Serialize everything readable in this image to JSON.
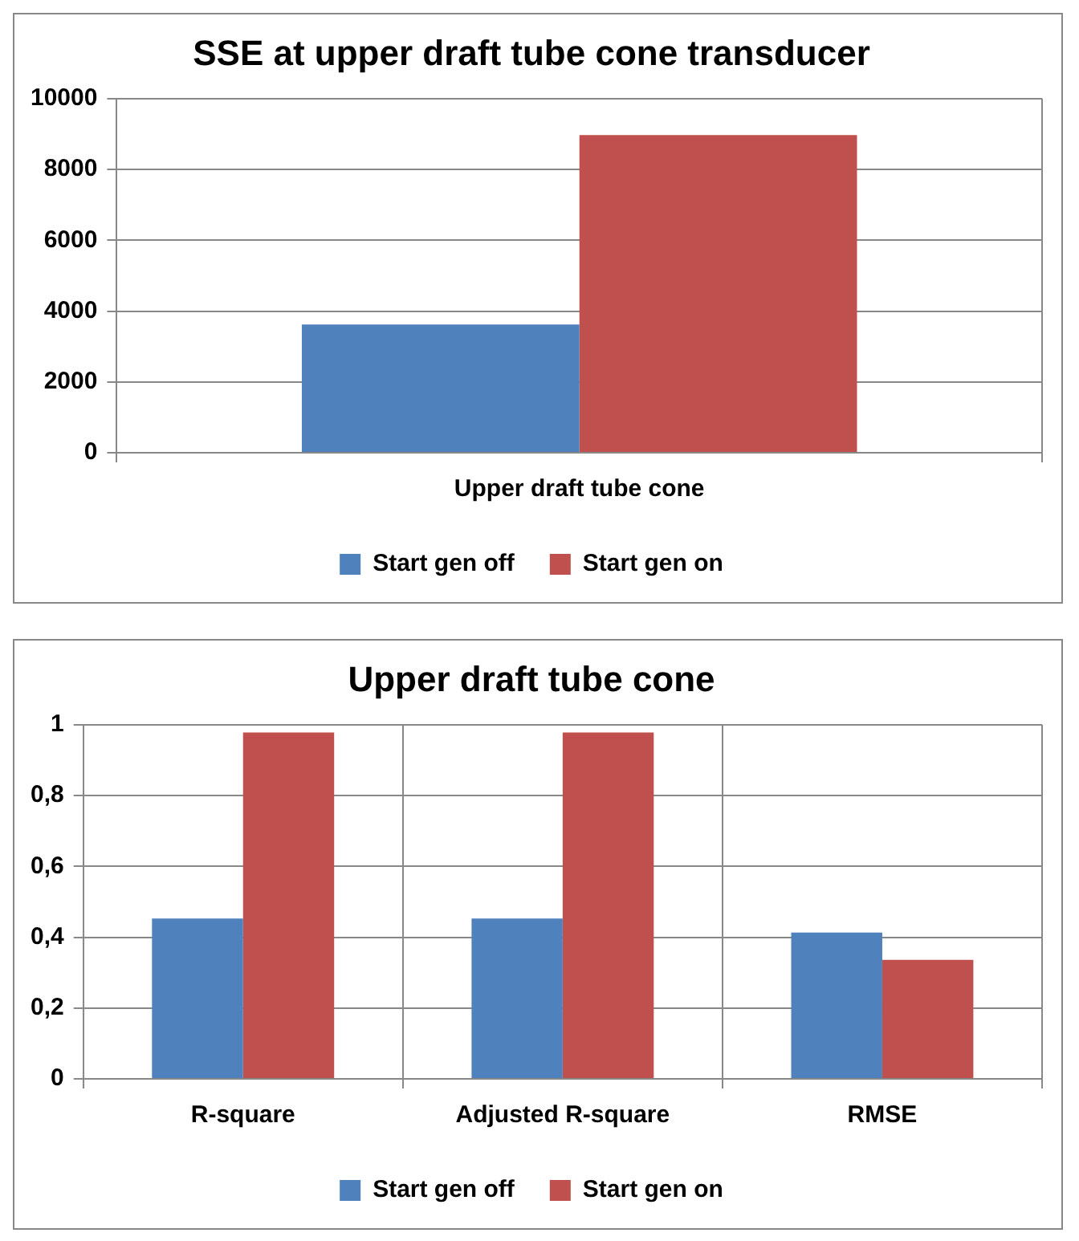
{
  "chart_data": [
    {
      "type": "bar",
      "title": "SSE at upper draft tube cone transducer",
      "categories": [
        "Upper draft tube cone"
      ],
      "series": [
        {
          "name": "Start gen off",
          "color": "#4f81bd",
          "values": [
            3620
          ]
        },
        {
          "name": "Start gen on",
          "color": "#c0504d",
          "values": [
            8970
          ]
        }
      ],
      "ylim": [
        0,
        10000
      ],
      "yticks": [
        0,
        2000,
        4000,
        6000,
        8000,
        10000
      ],
      "grid": true,
      "legend": "bottom"
    },
    {
      "type": "bar",
      "title": "Upper draft tube cone",
      "categories": [
        "R-square",
        "Adjusted R-square",
        "RMSE"
      ],
      "series": [
        {
          "name": "Start gen off",
          "color": "#4f81bd",
          "values": [
            0.453,
            0.453,
            0.413
          ]
        },
        {
          "name": "Start gen on",
          "color": "#c0504d",
          "values": [
            0.978,
            0.978,
            0.336
          ]
        }
      ],
      "ylim": [
        0,
        1
      ],
      "yticks": [
        0,
        {
          "value": 0.2,
          "label": "0,2"
        },
        {
          "value": 0.4,
          "label": "0,4"
        },
        {
          "value": 0.6,
          "label": "0,6"
        },
        {
          "value": 0.8,
          "label": "0,8"
        },
        1
      ],
      "grid": true,
      "legend": "bottom"
    }
  ]
}
